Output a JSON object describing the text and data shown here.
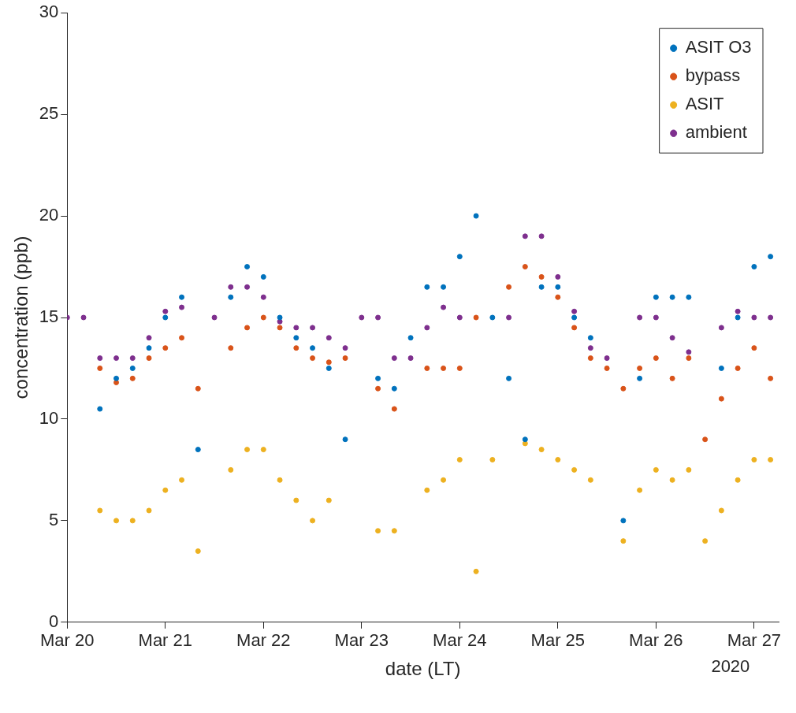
{
  "chart_data": {
    "type": "scatter",
    "xlabel": "date (LT)",
    "ylabel": "concentration (ppb)",
    "x": [
      "2020-03-20T00:00",
      "2020-03-20T04:00",
      "2020-03-20T08:00",
      "2020-03-20T12:00",
      "2020-03-20T16:00",
      "2020-03-20T20:00",
      "2020-03-21T00:00",
      "2020-03-21T04:00",
      "2020-03-21T08:00",
      "2020-03-21T12:00",
      "2020-03-21T16:00",
      "2020-03-21T20:00",
      "2020-03-22T00:00",
      "2020-03-22T04:00",
      "2020-03-22T08:00",
      "2020-03-22T12:00",
      "2020-03-22T16:00",
      "2020-03-22T20:00",
      "2020-03-23T00:00",
      "2020-03-23T04:00",
      "2020-03-23T08:00",
      "2020-03-23T12:00",
      "2020-03-23T16:00",
      "2020-03-23T20:00",
      "2020-03-24T00:00",
      "2020-03-24T04:00",
      "2020-03-24T08:00",
      "2020-03-24T12:00",
      "2020-03-24T16:00",
      "2020-03-24T20:00",
      "2020-03-25T00:00",
      "2020-03-25T04:00",
      "2020-03-25T08:00",
      "2020-03-25T12:00",
      "2020-03-25T16:00",
      "2020-03-25T20:00",
      "2020-03-26T00:00",
      "2020-03-26T04:00",
      "2020-03-26T08:00",
      "2020-03-26T12:00",
      "2020-03-26T16:00",
      "2020-03-26T20:00",
      "2020-03-27T00:00",
      "2020-03-27T04:00"
    ],
    "series": [
      {
        "name": "ASIT O3",
        "color": "#0072bd",
        "values": [
          null,
          null,
          10.5,
          12,
          12.5,
          13.5,
          15,
          16,
          8.5,
          null,
          16,
          17.5,
          17,
          15,
          14,
          13.5,
          12.5,
          9,
          null,
          12,
          11.5,
          14,
          16.5,
          16.5,
          18,
          20,
          15,
          12,
          9,
          16.5,
          16.5,
          15,
          14,
          null,
          5,
          12,
          16,
          16,
          16,
          null,
          12.5,
          15,
          17.5,
          18
        ]
      },
      {
        "name": "bypass",
        "color": "#d95319",
        "values": [
          null,
          null,
          12.5,
          11.8,
          12,
          13,
          13.5,
          14,
          11.5,
          null,
          13.5,
          14.5,
          15,
          14.5,
          13.5,
          13,
          12.8,
          13,
          null,
          11.5,
          10.5,
          null,
          12.5,
          12.5,
          12.5,
          15,
          null,
          16.5,
          17.5,
          17,
          16,
          14.5,
          13,
          12.5,
          11.5,
          12.5,
          13,
          12,
          13,
          9,
          11,
          12.5,
          13.5,
          12
        ]
      },
      {
        "name": "ASIT",
        "color": "#edb120",
        "values": [
          null,
          null,
          5.5,
          5,
          5,
          5.5,
          6.5,
          7,
          3.5,
          null,
          7.5,
          8.5,
          8.5,
          7,
          6,
          5,
          6,
          null,
          null,
          4.5,
          4.5,
          null,
          6.5,
          7,
          8,
          2.5,
          8,
          null,
          8.8,
          8.5,
          8,
          7.5,
          7,
          null,
          4,
          6.5,
          7.5,
          7,
          7.5,
          4,
          5.5,
          7,
          8,
          8
        ]
      },
      {
        "name": "ambient",
        "color": "#7e2f8e",
        "values": [
          15,
          15,
          13,
          13,
          13,
          14,
          15.3,
          15.5,
          null,
          15,
          16.5,
          16.5,
          16,
          14.8,
          14.5,
          14.5,
          14,
          13.5,
          15,
          15,
          13,
          13,
          14.5,
          15.5,
          15,
          null,
          null,
          15,
          19,
          19,
          17,
          15.3,
          13.5,
          13,
          null,
          15,
          15,
          14,
          13.3,
          null,
          14.5,
          15.3,
          15,
          15
        ]
      }
    ],
    "xlim": [
      "2020-03-20T00:00",
      "2020-03-27T06:00"
    ],
    "xticks": [
      {
        "value": "2020-03-20",
        "label": "Mar 20"
      },
      {
        "value": "2020-03-21",
        "label": "Mar 21"
      },
      {
        "value": "2020-03-22",
        "label": "Mar 22"
      },
      {
        "value": "2020-03-23",
        "label": "Mar 23"
      },
      {
        "value": "2020-03-24",
        "label": "Mar 24"
      },
      {
        "value": "2020-03-25",
        "label": "Mar 25"
      },
      {
        "value": "2020-03-26",
        "label": "Mar 26"
      },
      {
        "value": "2020-03-27",
        "label": "Mar 27"
      }
    ],
    "ylim": [
      0,
      30
    ],
    "yticks": [
      0,
      5,
      10,
      15,
      20,
      25,
      30
    ],
    "annotations": [
      "2020"
    ],
    "grid": false,
    "legend": "top right",
    "marker": "circle"
  }
}
